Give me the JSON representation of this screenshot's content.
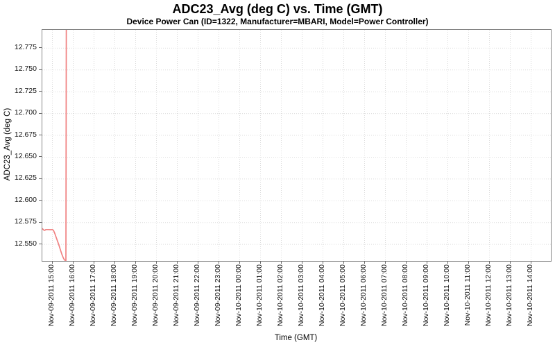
{
  "chart_data": {
    "type": "line",
    "title": "ADC23_Avg (deg C) vs. Time (GMT)",
    "subtitle": "Device Power Can (ID=1322, Manufacturer=MBARI, Model=Power Controller)",
    "xlabel": "Time (GMT)",
    "ylabel": "ADC23_Avg (deg C)",
    "legend": "none",
    "grid": {
      "visible": true,
      "style": "dotted",
      "color": "#dcdcdc"
    },
    "plot_border_color": "#848484",
    "tick_mark_color": "#6b6b6b",
    "y_axis": {
      "range": [
        12.531,
        12.796
      ],
      "tick_values": [
        12.55,
        12.575,
        12.6,
        12.625,
        12.65,
        12.675,
        12.7,
        12.725,
        12.75,
        12.775
      ],
      "tick_labels": [
        "12.550",
        "12.575",
        "12.600",
        "12.625",
        "12.650",
        "12.675",
        "12.700",
        "12.725",
        "12.750",
        "12.775"
      ]
    },
    "x_axis": {
      "epoch_label": "Nov-09-2011 15:00",
      "range_minutes": [
        -29,
        1437
      ],
      "tick_minutes": [
        0,
        60,
        120,
        180,
        240,
        300,
        360,
        420,
        480,
        540,
        600,
        660,
        720,
        780,
        840,
        900,
        960,
        1020,
        1080,
        1140,
        1200,
        1260,
        1320,
        1380
      ],
      "tick_labels": [
        "Nov-09-2011 15:00",
        "Nov-09-2011 16:00",
        "Nov-09-2011 17:00",
        "Nov-09-2011 18:00",
        "Nov-09-2011 19:00",
        "Nov-09-2011 20:00",
        "Nov-09-2011 21:00",
        "Nov-09-2011 22:00",
        "Nov-09-2011 23:00",
        "Nov-10-2011 00:00",
        "Nov-10-2011 01:00",
        "Nov-10-2011 02:00",
        "Nov-10-2011 03:00",
        "Nov-10-2011 04:00",
        "Nov-10-2011 05:00",
        "Nov-10-2011 06:00",
        "Nov-10-2011 07:00",
        "Nov-10-2011 08:00",
        "Nov-10-2011 09:00",
        "Nov-10-2011 10:00",
        "Nov-10-2011 11:00",
        "Nov-10-2011 12:00",
        "Nov-10-2011 13:00",
        "Nov-10-2011 14:00"
      ]
    },
    "series": [
      {
        "name": "ADC23_Avg",
        "color": "#f08080",
        "points": [
          {
            "t": -29,
            "v": 12.568
          },
          {
            "t": -25,
            "v": 12.5665
          },
          {
            "t": -22,
            "v": 12.566
          },
          {
            "t": -19,
            "v": 12.567
          },
          {
            "t": -12,
            "v": 12.567
          },
          {
            "t": -5,
            "v": 12.5668
          },
          {
            "t": 0,
            "v": 12.567
          },
          {
            "t": 3,
            "v": 12.5662
          },
          {
            "t": 7,
            "v": 12.5625
          },
          {
            "t": 11,
            "v": 12.558
          },
          {
            "t": 15,
            "v": 12.5535
          },
          {
            "t": 19,
            "v": 12.549
          },
          {
            "t": 23,
            "v": 12.544
          },
          {
            "t": 27,
            "v": 12.539
          },
          {
            "t": 31,
            "v": 12.535
          },
          {
            "t": 34,
            "v": 12.5327
          },
          {
            "t": 37,
            "v": 12.5315
          },
          {
            "t": 39,
            "v": 12.531
          },
          {
            "t": 40.5,
            "v": 12.9
          }
        ]
      }
    ]
  }
}
